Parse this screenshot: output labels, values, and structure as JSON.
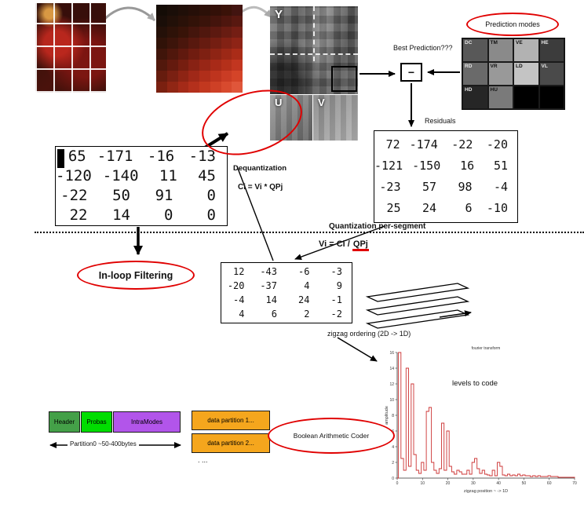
{
  "labels": {
    "prediction_modes": "Prediction modes",
    "best_prediction": "Best Prediction???",
    "residuals": "Residuals",
    "dequantization": "Dequantization",
    "dequant_formula": "Ci = Vi * QPj",
    "quantization_per_segment": "Quantization per-segment",
    "quant_formula_prefix": "Vi = Ci / ",
    "quant_formula_qp": "QPj",
    "inloop_filtering": "In-loop Filtering",
    "zigzag_ordering": "zigzag ordering  (2D -> 1D)",
    "boolean_arithmetic_coder": "Boolean Arithmetic Coder",
    "minus_sign": "−",
    "dots_more": ". ..."
  },
  "planes": {
    "y": "Y",
    "u": "U",
    "v": "V"
  },
  "prediction_grid": {
    "cells": [
      {
        "label": "DC",
        "bg": "#585858",
        "fg": "#e6e6e6"
      },
      {
        "label": "TM",
        "bg": "#8a8a8a",
        "fg": "#111111"
      },
      {
        "label": "VE",
        "bg": "#b2b2b2",
        "fg": "#111111"
      },
      {
        "label": "HE",
        "bg": "#3c3c3c",
        "fg": "#e6e6e6"
      },
      {
        "label": "RD",
        "bg": "#6a6a6a",
        "fg": "#e6e6e6"
      },
      {
        "label": "VR",
        "bg": "#999999",
        "fg": "#111111"
      },
      {
        "label": "LD",
        "bg": "#c4c4c4",
        "fg": "#111111"
      },
      {
        "label": "VL",
        "bg": "#4a4a4a",
        "fg": "#e6e6e6"
      },
      {
        "label": "HD",
        "bg": "#262626",
        "fg": "#e6e6e6"
      },
      {
        "label": "HU",
        "bg": "#7a7a7a",
        "fg": "#111111"
      },
      {
        "label": "",
        "bg": "#000000",
        "fg": "#ffffff"
      },
      {
        "label": "",
        "bg": "#000000",
        "fg": "#ffffff"
      }
    ]
  },
  "matrices": {
    "dequantized": [
      [
        65,
        -171,
        -16,
        -13
      ],
      [
        -120,
        -140,
        11,
        45
      ],
      [
        -22,
        50,
        91,
        0
      ],
      [
        22,
        14,
        0,
        0
      ]
    ],
    "residuals": [
      [
        72,
        -174,
        -22,
        -20
      ],
      [
        -121,
        -150,
        16,
        51
      ],
      [
        -23,
        57,
        98,
        -4
      ],
      [
        25,
        24,
        6,
        -10
      ]
    ],
    "quantized": [
      [
        12,
        -43,
        -6,
        -3
      ],
      [
        -20,
        -37,
        4,
        9
      ],
      [
        -4,
        14,
        24,
        -1
      ],
      [
        4,
        6,
        2,
        -2
      ]
    ]
  },
  "bitstream": {
    "header": "Header",
    "probas": "Probas",
    "intra_modes": "IntraModes",
    "partition0": "Partition0  ~50-400bytes",
    "data_partition_1": "data partition 1...",
    "data_partition_2": "data partition 2..."
  },
  "macroblock_pixels": [
    [
      "#140c06",
      "#1a0e08",
      "#200f08",
      "#260f08",
      "#2c1008",
      "#331008",
      "#3a1208",
      "#421410"
    ],
    [
      "#1a0e08",
      "#221008",
      "#2a1108",
      "#321208",
      "#3a130a",
      "#44140c",
      "#4e160e",
      "#581810"
    ],
    [
      "#241008",
      "#2e1208",
      "#381308",
      "#44150c",
      "#50170e",
      "#5c1910",
      "#681c12",
      "#741e14"
    ],
    [
      "#301208",
      "#3c140a",
      "#4a160c",
      "#58180e",
      "#661b10",
      "#741e12",
      "#822114",
      "#8e2416"
    ],
    [
      "#40150a",
      "#50170c",
      "#60190e",
      "#701c10",
      "#7e2012",
      "#8e2414",
      "#9c2816",
      "#aa2c18"
    ],
    [
      "#52180c",
      "#641a0e",
      "#761e10",
      "#882214",
      "#982616",
      "#a82a18",
      "#b4301a",
      "#c23620"
    ],
    [
      "#661c0e",
      "#7a2012",
      "#8e2414",
      "#a02818",
      "#b02e1a",
      "#be341e",
      "#ca3c24",
      "#d44428"
    ],
    [
      "#7a2010",
      "#902614",
      "#a42a18",
      "#b4301c",
      "#c2381f",
      "#ce4026",
      "#d84a2e",
      "#e0563a"
    ]
  ],
  "colors": {
    "accent_red": "#e00000",
    "partition_orange": "#f5a61d",
    "header_green": "#44a048",
    "probas_green": "#00dd00",
    "intra_purple": "#b255ea",
    "chart_red": "#cc3333"
  },
  "chart_data": {
    "type": "line",
    "style": "steps",
    "title": "fourier transform",
    "annotation": "levels to code",
    "xlabel": "zigzag position   ~ -> 1D",
    "ylabel": "amplitude",
    "xlim": [
      0,
      70
    ],
    "ylim": [
      0,
      16
    ],
    "xticks": [
      0,
      10,
      20,
      30,
      40,
      50,
      60,
      70
    ],
    "yticks": [
      0,
      2,
      4,
      6,
      8,
      10,
      12,
      14,
      16
    ],
    "color": "#cc3333",
    "values": [
      0,
      16,
      2.5,
      1,
      14,
      1.5,
      12,
      3,
      1,
      0.6,
      2,
      1,
      8.5,
      9,
      2,
      1,
      0.6,
      1.2,
      7,
      1,
      6,
      1.5,
      0.8,
      0.5,
      1,
      0.8,
      0.5,
      0.5,
      1,
      0.5,
      2,
      2.5,
      1.2,
      0.6,
      1,
      0.5,
      0.4,
      0.3,
      1,
      0.3,
      2,
      1.5,
      0.4,
      0.3,
      0.5,
      0.3,
      0.4,
      0.3,
      0.5,
      0.3,
      0.4,
      0.3,
      0.3,
      0.2,
      0.3,
      0.2,
      0.3,
      0.2,
      0.2,
      0.2,
      0.3,
      0.2,
      0.2,
      0.2,
      0.1,
      0.1,
      0.1,
      0.1,
      0.1,
      0.1,
      0.1
    ]
  }
}
